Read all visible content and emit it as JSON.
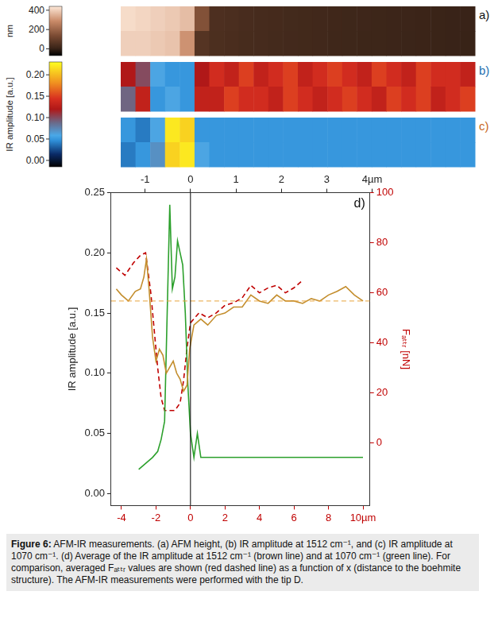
{
  "maps": {
    "colorbars": [
      {
        "title": "nm",
        "range": [
          -70,
          440
        ],
        "ticks": [
          0,
          200,
          400
        ],
        "panels": [
          {
            "label": "a)",
            "cells": [
              [
                420,
                410,
                400,
                390,
                370,
                150,
                45,
                40,
                35,
                30,
                28,
                25,
                22,
                20,
                18,
                15,
                14,
                12,
                10,
                10,
                8,
                6,
                5,
                5
              ],
              [
                400,
                400,
                390,
                380,
                300,
                60,
                42,
                38,
                32,
                30,
                26,
                24,
                22,
                20,
                16,
                15,
                12,
                12,
                10,
                9,
                8,
                6,
                5,
                4
              ]
            ]
          }
        ]
      },
      {
        "title": "IR amplitude [a.u.]",
        "range": [
          -0.015,
          0.23
        ],
        "ticks": [
          {
            "value": 0,
            "label": "0.00"
          },
          {
            "value": 0.05,
            "label": "0.05"
          },
          {
            "value": 0.1,
            "label": "0.10"
          },
          {
            "value": 0.15,
            "label": "0.15"
          },
          {
            "value": 0.2,
            "label": "0.20"
          }
        ],
        "panels": [
          {
            "label": "b)",
            "cells": [
              [
                0.12,
                0.1,
                0.06,
                0.05,
                0.05,
                0.12,
                0.14,
                0.13,
                0.15,
                0.13,
                0.14,
                0.15,
                0.13,
                0.14,
                0.15,
                0.14,
                0.13,
                0.15,
                0.14,
                0.13,
                0.15,
                0.14,
                0.14,
                0.13
              ],
              [
                0.09,
                0.13,
                0.05,
                0.06,
                0.05,
                0.13,
                0.13,
                0.15,
                0.14,
                0.14,
                0.13,
                0.15,
                0.14,
                0.13,
                0.14,
                0.15,
                0.14,
                0.13,
                0.15,
                0.14,
                0.15,
                0.13,
                0.14,
                0.15
              ]
            ]
          },
          {
            "label": "c)",
            "cells": [
              [
                0.05,
                0.04,
                0.06,
                0.22,
                0.21,
                0.05,
                0.05,
                0.05,
                0.05,
                0.05,
                0.05,
                0.05,
                0.05,
                0.05,
                0.05,
                0.05,
                0.05,
                0.05,
                0.05,
                0.05,
                0.05,
                0.05,
                0.05,
                0.05
              ],
              [
                0.04,
                0.05,
                0.07,
                0.21,
                0.22,
                0.06,
                0.05,
                0.05,
                0.05,
                0.05,
                0.05,
                0.05,
                0.05,
                0.05,
                0.05,
                0.05,
                0.05,
                0.05,
                0.05,
                0.05,
                0.05,
                0.05,
                0.05,
                0.05
              ]
            ]
          }
        ]
      }
    ]
  },
  "chart_data": {
    "type": "line",
    "panel_label": "d)",
    "y_label": "IR amplitude [a.u.]",
    "y2_label": "Fₐₜₜᵣ [nN]",
    "xlim": [
      -4.6,
      10.4
    ],
    "xticks": [
      -4,
      -2,
      0,
      2,
      4,
      6,
      8,
      {
        "value": 10,
        "label": "10µm"
      }
    ],
    "x2lim": [
      -1.75,
      3.95
    ],
    "x2ticks": [
      -1,
      0,
      1,
      2,
      3,
      {
        "value": 4,
        "label": "4µm"
      }
    ],
    "ylim": [
      -0.01,
      0.25
    ],
    "yticks": [
      {
        "value": 0,
        "label": "0.00"
      },
      {
        "value": 0.05,
        "label": "0.05"
      },
      {
        "value": 0.1,
        "label": "0.10"
      },
      {
        "value": 0.15,
        "label": "0.15"
      },
      {
        "value": 0.2,
        "label": "0.20"
      },
      {
        "value": 0.25,
        "label": "0.25"
      }
    ],
    "y2lim": [
      -25,
      100
    ],
    "y2ticks": [
      0,
      20,
      40,
      60,
      80,
      100
    ],
    "grid": false,
    "series": [
      {
        "color": "#c38d2c",
        "line_style": "solid",
        "x": [
          -4.3,
          -4.0,
          -3.6,
          -3.2,
          -2.9,
          -2.7,
          -2.55,
          -2.4,
          -2.2,
          -2.0,
          -1.8,
          -1.6,
          -1.4,
          -1.2,
          -1.0,
          -0.8,
          -0.6,
          -0.4,
          -0.2,
          -0.05,
          0.2,
          0.6,
          1.0,
          1.5,
          2.0,
          2.5,
          3.0,
          3.5,
          4.0,
          4.5,
          5.0,
          5.5,
          6.0,
          6.5,
          7.0,
          7.5,
          8.0,
          8.5,
          9.0,
          9.5,
          10.0
        ],
        "values": [
          0.17,
          0.165,
          0.16,
          0.168,
          0.17,
          0.18,
          0.195,
          0.17,
          0.13,
          0.11,
          0.12,
          0.115,
          0.1,
          0.105,
          0.11,
          0.1,
          0.095,
          0.085,
          0.09,
          0.12,
          0.14,
          0.145,
          0.14,
          0.148,
          0.15,
          0.155,
          0.155,
          0.165,
          0.16,
          0.158,
          0.165,
          0.16,
          0.16,
          0.158,
          0.162,
          0.16,
          0.165,
          0.168,
          0.172,
          0.165,
          0.16
        ]
      },
      {
        "color": "#2ca02c",
        "line_style": "solid",
        "x": [
          -3.0,
          -2.6,
          -2.2,
          -1.9,
          -1.7,
          -1.5,
          -1.35,
          -1.2,
          -1.05,
          -0.9,
          -0.75,
          -0.6,
          -0.45,
          -0.3,
          -0.15,
          0.0,
          0.2,
          0.4,
          0.6,
          1.0,
          2.0,
          3.0,
          4.0,
          5.0,
          6.0,
          7.0,
          8.0,
          9.0,
          10.0
        ],
        "values": [
          0.02,
          0.025,
          0.03,
          0.035,
          0.045,
          0.06,
          0.15,
          0.24,
          0.17,
          0.18,
          0.21,
          0.2,
          0.19,
          0.15,
          0.09,
          0.05,
          0.03,
          0.05,
          0.03,
          0.03,
          0.03,
          0.03,
          0.03,
          0.03,
          0.03,
          0.03,
          0.03,
          0.03,
          0.03
        ]
      },
      {
        "color": "#c00000",
        "line_style": "dashed",
        "axis": "y2",
        "x": [
          -4.3,
          -3.8,
          -3.3,
          -2.9,
          -2.6,
          -2.3,
          -2.1,
          -1.9,
          -1.7,
          -1.5,
          -1.2,
          -0.9,
          -0.6,
          -0.4,
          -0.2,
          0.0,
          0.5,
          1.0,
          1.5,
          2.0,
          2.5,
          3.0,
          3.5,
          4.0,
          4.5,
          5.0,
          5.5,
          6.0,
          6.5
        ],
        "values": [
          70,
          67,
          72,
          75,
          76,
          60,
          45,
          30,
          18,
          13,
          13,
          13,
          16,
          25,
          38,
          48,
          52,
          50,
          52,
          55,
          56,
          58,
          63,
          60,
          62,
          63,
          60,
          62,
          65
        ]
      }
    ],
    "reference_lines": [
      {
        "x": 0,
        "color": "#000000",
        "line_style": "solid"
      },
      {
        "y": 0.16,
        "color": "#e8a33c",
        "line_style": "dashed"
      }
    ]
  },
  "caption": {
    "label": "Figure 6:",
    "text": "AFM-IR measurements. (a) AFM height, (b) IR amplitude at 1512 cm⁻¹, and (c) IR amplitude at 1070 cm⁻¹. (d) Average of the IR amplitude at 1512 cm⁻¹ (brown line) and at 1070 cm⁻¹ (green line). For comparison, averaged Fₐₜₜᵣ values are shown (red dashed line) as a function of x (distance to the boehmite structure). The AFM-IR measurements were performed with the tip D."
  }
}
